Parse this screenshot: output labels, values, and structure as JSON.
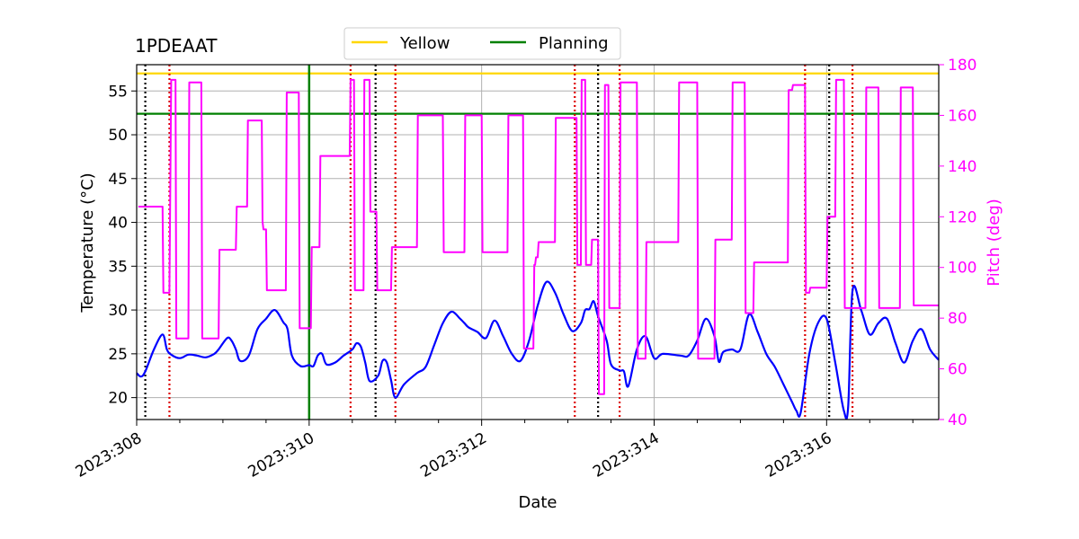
{
  "chart_data": {
    "type": "line",
    "title": "1PDEAAT",
    "xlabel": "Date",
    "ylabel": "Temperature ($^\\circ$C)",
    "ylabel_display": "Temperature (°C)",
    "y2label": "Pitch (deg)",
    "xlim": [
      308.0,
      317.3
    ],
    "ylim": [
      17.5,
      58.0
    ],
    "y2lim": [
      40,
      180
    ],
    "xticks": [
      308,
      310,
      312,
      314,
      316
    ],
    "xtick_labels": [
      "2023:308",
      "2023:310",
      "2023:312",
      "2023:314",
      "2023:316"
    ],
    "yticks": [
      20,
      25,
      30,
      35,
      40,
      45,
      50,
      55
    ],
    "y2ticks": [
      40,
      60,
      80,
      100,
      120,
      140,
      160,
      180
    ],
    "grid": true,
    "legend": {
      "placement": "top-center",
      "entries": [
        "Yellow",
        "Planning"
      ]
    },
    "limits": [
      {
        "name": "Yellow",
        "value": 57.0,
        "color": "#FFD700"
      },
      {
        "name": "Planning",
        "value": 52.4,
        "color": "#008000"
      }
    ],
    "now_line": {
      "x": 310.0,
      "color": "#008000"
    },
    "black_dotted_x": [
      308.1,
      310.77,
      313.35,
      316.03
    ],
    "red_dotted_x": [
      308.38,
      310.48,
      311.0,
      313.08,
      313.6,
      315.75,
      316.3
    ],
    "series": [
      {
        "name": "Temperature",
        "axis": "left",
        "color": "#0000FF",
        "x": [
          308.0,
          308.05,
          308.1,
          308.2,
          308.3,
          308.35,
          308.4,
          308.5,
          308.6,
          308.7,
          308.8,
          308.9,
          308.95,
          309.05,
          309.1,
          309.15,
          309.2,
          309.3,
          309.4,
          309.5,
          309.6,
          309.7,
          309.75,
          309.8,
          309.9,
          310.0,
          310.05,
          310.1,
          310.15,
          310.2,
          310.3,
          310.4,
          310.5,
          310.55,
          310.6,
          310.65,
          310.7,
          310.8,
          310.85,
          310.9,
          310.95,
          311.0,
          311.1,
          311.25,
          311.35,
          311.45,
          311.55,
          311.65,
          311.75,
          311.8,
          311.85,
          311.95,
          312.05,
          312.15,
          312.25,
          312.35,
          312.45,
          312.55,
          312.65,
          312.75,
          312.85,
          312.95,
          313.05,
          313.15,
          313.2,
          313.25,
          313.3,
          313.35,
          313.45,
          313.5,
          313.6,
          313.65,
          313.7,
          313.8,
          313.9,
          314.0,
          314.1,
          314.3,
          314.4,
          314.5,
          314.6,
          314.7,
          314.75,
          314.8,
          314.9,
          315.0,
          315.1,
          315.2,
          315.3,
          315.4,
          315.5,
          315.6,
          315.65,
          315.7,
          315.8,
          315.9,
          316.0,
          316.1,
          316.2,
          316.25,
          316.3,
          316.4,
          316.5,
          316.6,
          316.7,
          316.8,
          316.9,
          317.0,
          317.1,
          317.2,
          317.3
        ],
        "values": [
          22.8,
          22.4,
          23.0,
          25.5,
          27.2,
          25.5,
          24.9,
          24.5,
          24.9,
          24.8,
          24.6,
          25.0,
          25.5,
          26.8,
          26.5,
          25.5,
          24.2,
          24.8,
          27.8,
          29.0,
          30.0,
          28.6,
          27.8,
          24.8,
          23.6,
          23.7,
          23.6,
          24.8,
          25.0,
          23.8,
          24.0,
          24.8,
          25.5,
          26.2,
          25.8,
          24.0,
          21.9,
          22.5,
          24.2,
          24.0,
          22.0,
          20.0,
          21.5,
          22.8,
          23.5,
          26.0,
          28.5,
          29.8,
          29.0,
          28.5,
          28.0,
          27.5,
          26.8,
          28.8,
          27.0,
          25.0,
          24.2,
          26.5,
          30.5,
          33.2,
          32.0,
          29.5,
          27.6,
          28.5,
          30.0,
          30.1,
          31.0,
          29.3,
          26.5,
          23.8,
          23.1,
          23.0,
          21.3,
          25.5,
          27.0,
          24.5,
          25.0,
          24.8,
          24.8,
          26.5,
          29.0,
          27.0,
          24.1,
          25.2,
          25.5,
          25.5,
          29.5,
          27.5,
          25.0,
          23.5,
          21.5,
          19.5,
          18.5,
          18.3,
          25.0,
          28.5,
          29.0,
          24.0,
          18.5,
          19.0,
          32.2,
          30.0,
          27.2,
          28.5,
          29.0,
          26.2,
          24.0,
          26.5,
          27.8,
          25.5,
          24.3
        ]
      },
      {
        "name": "Pitch",
        "axis": "right",
        "color": "#FF00FF",
        "x": [
          308.02,
          308.3,
          308.31,
          308.38,
          308.4,
          308.45,
          308.46,
          308.6,
          308.61,
          308.75,
          308.76,
          308.95,
          308.96,
          309.15,
          309.16,
          309.28,
          309.29,
          309.45,
          309.46,
          309.47,
          309.5,
          309.51,
          309.73,
          309.74,
          309.88,
          309.89,
          310.02,
          310.03,
          310.12,
          310.13,
          310.47,
          310.48,
          310.52,
          310.53,
          310.63,
          310.64,
          310.7,
          310.71,
          310.78,
          310.79,
          310.95,
          310.96,
          311.25,
          311.26,
          311.55,
          311.56,
          311.8,
          311.81,
          312.0,
          312.01,
          312.3,
          312.31,
          312.48,
          312.49,
          312.6,
          312.61,
          312.62,
          312.63,
          312.65,
          312.66,
          312.85,
          312.86,
          313.1,
          313.11,
          313.15,
          313.16,
          313.2,
          313.21,
          313.27,
          313.28,
          313.35,
          313.36,
          313.42,
          313.43,
          313.47,
          313.48,
          313.6,
          313.61,
          313.8,
          313.81,
          313.9,
          313.91,
          314.0,
          314.01,
          314.28,
          314.29,
          314.5,
          314.51,
          314.7,
          314.71,
          314.9,
          314.91,
          315.05,
          315.06,
          315.15,
          315.16,
          315.3,
          315.31,
          315.55,
          315.56,
          315.6,
          315.61,
          315.75,
          315.76,
          315.8,
          315.81,
          316.0,
          316.01,
          316.1,
          316.11,
          316.2,
          316.21,
          316.3,
          316.31,
          316.45,
          316.46,
          316.6,
          316.61,
          316.85,
          316.86,
          317.0,
          317.01,
          317.1,
          317.11,
          317.3
        ],
        "values": [
          124,
          124,
          90,
          90,
          174,
          174,
          72,
          72,
          173,
          173,
          72,
          72,
          107,
          107,
          124,
          124,
          158,
          158,
          118,
          115,
          115,
          91,
          91,
          169,
          169,
          76,
          76,
          108,
          108,
          144,
          144,
          174,
          174,
          91,
          91,
          174,
          174,
          122,
          122,
          91,
          91,
          108,
          108,
          160,
          160,
          106,
          106,
          160,
          160,
          106,
          106,
          160,
          160,
          68,
          68,
          101,
          101,
          104,
          104,
          110,
          110,
          159,
          159,
          101,
          101,
          174,
          174,
          101,
          101,
          111,
          111,
          50,
          50,
          172,
          172,
          84,
          84,
          173,
          173,
          64,
          64,
          110,
          110,
          110,
          110,
          173,
          173,
          64,
          64,
          111,
          111,
          173,
          173,
          82,
          82,
          102,
          102,
          102,
          102,
          170,
          170,
          172,
          172,
          90,
          90,
          92,
          92,
          120,
          120,
          174,
          174,
          84,
          84,
          84,
          84,
          171,
          171,
          84,
          84,
          171,
          171,
          85,
          85,
          85,
          85
        ]
      }
    ]
  }
}
